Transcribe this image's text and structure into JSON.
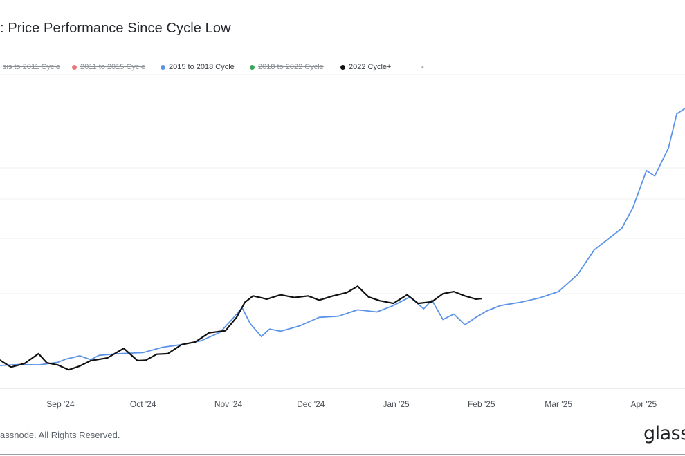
{
  "title": ": Price Performance Since Cycle Low",
  "footer": "assnode. All Rights Reserved.",
  "brand": "glass",
  "legend": [
    {
      "label": "sis to 2011 Cycle",
      "color": "#8a8f96",
      "hidden": true
    },
    {
      "label": "2011 to 2015 Cycle",
      "color": "#e8787a",
      "hidden": true
    },
    {
      "label": "2015 to 2018 Cycle",
      "color": "#5b93e6",
      "hidden": false
    },
    {
      "label": "2018 to 2022 Cycle",
      "color": "#3aa55a",
      "hidden": true
    },
    {
      "label": "2022 Cycle+",
      "color": "#111111",
      "hidden": false
    },
    {
      "label": "-",
      "color": "#ffffff",
      "hidden": false
    }
  ],
  "chart_data": {
    "type": "line",
    "title": ": Price Performance Since Cycle Low",
    "x_ticks": [
      "Sep '24",
      "Oct '24",
      "Nov '24",
      "Dec '24",
      "Jan '25",
      "Feb '25",
      "Mar '25",
      "Apr '25"
    ],
    "x_range": [
      "2024-08-10",
      "2025-04-16"
    ],
    "grid": "horizontal",
    "series": [
      {
        "name": "2015 to 2018 Cycle",
        "color": "#5b93e6",
        "x": [
          "2024-08-10",
          "2024-08-17",
          "2024-08-24",
          "2024-08-31",
          "2024-09-03",
          "2024-09-08",
          "2024-09-12",
          "2024-09-15",
          "2024-09-22",
          "2024-10-01",
          "2024-10-08",
          "2024-10-15",
          "2024-10-22",
          "2024-10-29",
          "2024-11-02",
          "2024-11-06",
          "2024-11-09",
          "2024-11-13",
          "2024-11-16",
          "2024-11-20",
          "2024-11-27",
          "2024-12-04",
          "2024-12-11",
          "2024-12-18",
          "2024-12-25",
          "2024-12-31",
          "2025-01-06",
          "2025-01-11",
          "2025-01-14",
          "2025-01-18",
          "2025-01-22",
          "2025-01-26",
          "2025-01-30",
          "2025-02-03",
          "2025-02-08",
          "2025-02-15",
          "2025-02-22",
          "2025-03-01",
          "2025-03-08",
          "2025-03-14",
          "2025-03-20",
          "2025-03-24",
          "2025-03-28",
          "2025-04-02",
          "2025-04-05",
          "2025-04-10",
          "2025-04-13",
          "2025-04-16"
        ],
        "values": [
          1.0,
          1.1,
          1.05,
          1.3,
          1.6,
          1.9,
          1.55,
          1.95,
          2.1,
          2.2,
          2.7,
          2.95,
          3.3,
          4.1,
          5.2,
          6.4,
          4.9,
          3.7,
          4.4,
          4.2,
          4.7,
          5.5,
          5.6,
          6.2,
          6.0,
          6.6,
          7.4,
          6.3,
          7.1,
          5.3,
          5.8,
          4.8,
          5.5,
          6.1,
          6.6,
          6.9,
          7.3,
          7.9,
          9.5,
          11.8,
          13.0,
          13.8,
          15.7,
          19.2,
          18.7,
          21.3,
          24.5,
          25.0
        ]
      },
      {
        "name": "2022 Cycle+",
        "color": "#111111",
        "x": [
          "2024-08-10",
          "2024-08-14",
          "2024-08-19",
          "2024-08-24",
          "2024-08-27",
          "2024-08-31",
          "2024-09-04",
          "2024-09-08",
          "2024-09-12",
          "2024-09-18",
          "2024-09-24",
          "2024-09-29",
          "2024-10-02",
          "2024-10-06",
          "2024-10-10",
          "2024-10-15",
          "2024-10-20",
          "2024-10-25",
          "2024-10-31",
          "2024-11-04",
          "2024-11-07",
          "2024-11-10",
          "2024-11-15",
          "2024-11-20",
          "2024-11-25",
          "2024-11-30",
          "2024-12-04",
          "2024-12-09",
          "2024-12-14",
          "2024-12-18",
          "2024-12-22",
          "2024-12-26",
          "2024-12-31",
          "2025-01-05",
          "2025-01-09",
          "2025-01-14",
          "2025-01-18",
          "2025-01-22",
          "2025-01-26",
          "2025-01-30",
          "2025-02-01"
        ],
        "values": [
          1.5,
          0.85,
          1.2,
          2.1,
          1.25,
          1.05,
          0.6,
          0.95,
          1.45,
          1.7,
          2.6,
          1.45,
          1.5,
          2.05,
          2.1,
          2.95,
          3.2,
          4.05,
          4.25,
          5.5,
          6.9,
          7.5,
          7.2,
          7.6,
          7.35,
          7.5,
          7.1,
          7.5,
          7.8,
          8.4,
          7.4,
          7.05,
          6.8,
          7.6,
          6.8,
          6.95,
          7.7,
          7.9,
          7.5,
          7.2,
          7.25
        ]
      }
    ]
  }
}
